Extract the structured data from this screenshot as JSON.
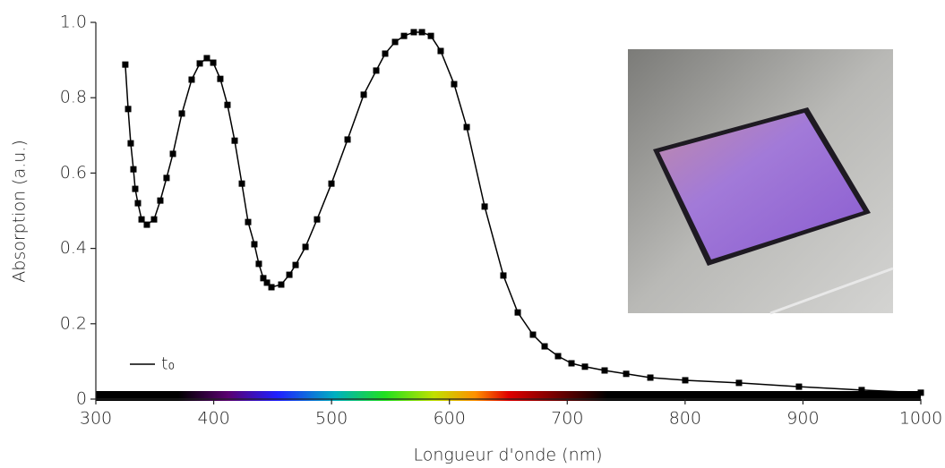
{
  "chart_data": {
    "type": "line",
    "x_label": "Longueur d'onde (nm)",
    "y_label": "Absorption (a.u.)",
    "xlim": [
      300,
      1000
    ],
    "ylim": [
      0,
      1
    ],
    "xticks": [
      300,
      400,
      500,
      600,
      700,
      800,
      900,
      1000
    ],
    "yticks": [
      0,
      0.2,
      0.4,
      0.6,
      0.8,
      {
        "value": 1,
        "label": "1.0"
      }
    ],
    "legend": "lower left",
    "series": [
      {
        "name": "t₀",
        "color": "#000000",
        "x": [
          325,
          327.4,
          329.6,
          331.9,
          333.4,
          335.7,
          338.8,
          343.3,
          349.4,
          354.7,
          360,
          365.4,
          373,
          381.3,
          388.2,
          394.2,
          399.6,
          405.6,
          411.7,
          417.8,
          423.9,
          429.2,
          434.5,
          438.3,
          442.1,
          445.2,
          449,
          457.3,
          464.2,
          469.5,
          477.9,
          487.7,
          499.9,
          513.6,
          527.3,
          537.9,
          545.5,
          553.9,
          561.5,
          569.8,
          576.7,
          584.3,
          592.6,
          604,
          614.7,
          629.9,
          645.8,
          658,
          670.9,
          680.8,
          692.2,
          703.6,
          715,
          731.7,
          750,
          770.5,
          800.1,
          845.7,
          896.6,
          949.8,
          1000
        ],
        "values": [
          0.888,
          0.77,
          0.679,
          0.61,
          0.558,
          0.52,
          0.477,
          0.463,
          0.477,
          0.527,
          0.587,
          0.651,
          0.758,
          0.848,
          0.891,
          0.905,
          0.893,
          0.85,
          0.781,
          0.686,
          0.572,
          0.47,
          0.411,
          0.359,
          0.321,
          0.309,
          0.297,
          0.304,
          0.33,
          0.356,
          0.404,
          0.477,
          0.572,
          0.689,
          0.808,
          0.872,
          0.917,
          0.948,
          0.964,
          0.974,
          0.974,
          0.964,
          0.924,
          0.836,
          0.722,
          0.511,
          0.328,
          0.23,
          0.171,
          0.14,
          0.114,
          0.095,
          0.086,
          0.076,
          0.067,
          0.057,
          0.05,
          0.043,
          0.033,
          0.024,
          0.017
        ]
      }
    ]
  }
}
